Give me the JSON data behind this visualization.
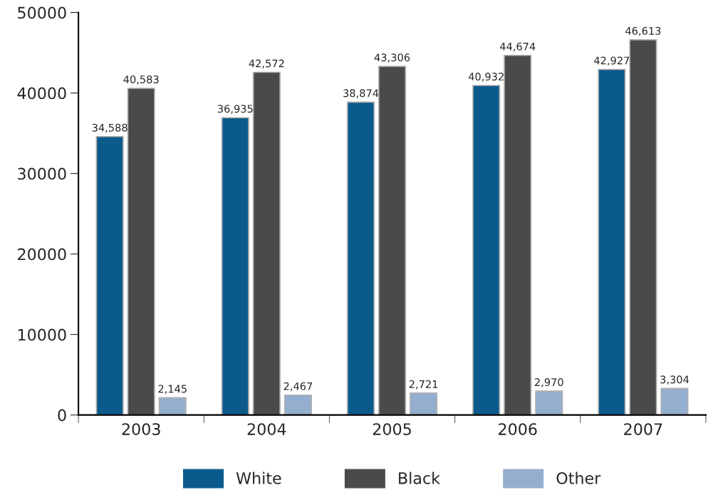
{
  "chart_data": {
    "type": "bar",
    "categories": [
      "2003",
      "2004",
      "2005",
      "2006",
      "2007"
    ],
    "series": [
      {
        "name": "White",
        "color": "#0b5a8c",
        "values": [
          34588,
          36935,
          38874,
          40932,
          42927
        ],
        "value_labels": [
          "34,588",
          "36,935",
          "38,874",
          "40,932",
          "42,927"
        ]
      },
      {
        "name": "Black",
        "color": "#4a4a4a",
        "values": [
          40583,
          42572,
          43306,
          44674,
          46613
        ],
        "value_labels": [
          "40,583",
          "42,572",
          "43,306",
          "44,674",
          "46,613"
        ]
      },
      {
        "name": "Other",
        "color": "#94aed0",
        "values": [
          2145,
          2467,
          2721,
          2970,
          3304
        ],
        "value_labels": [
          "2,145",
          "2,467",
          "2,721",
          "2,970",
          "3,304"
        ]
      }
    ],
    "ylim": [
      0,
      50000
    ],
    "yticks": [
      0,
      10000,
      20000,
      30000,
      40000,
      50000
    ],
    "grid": false,
    "legend": "bottom"
  }
}
